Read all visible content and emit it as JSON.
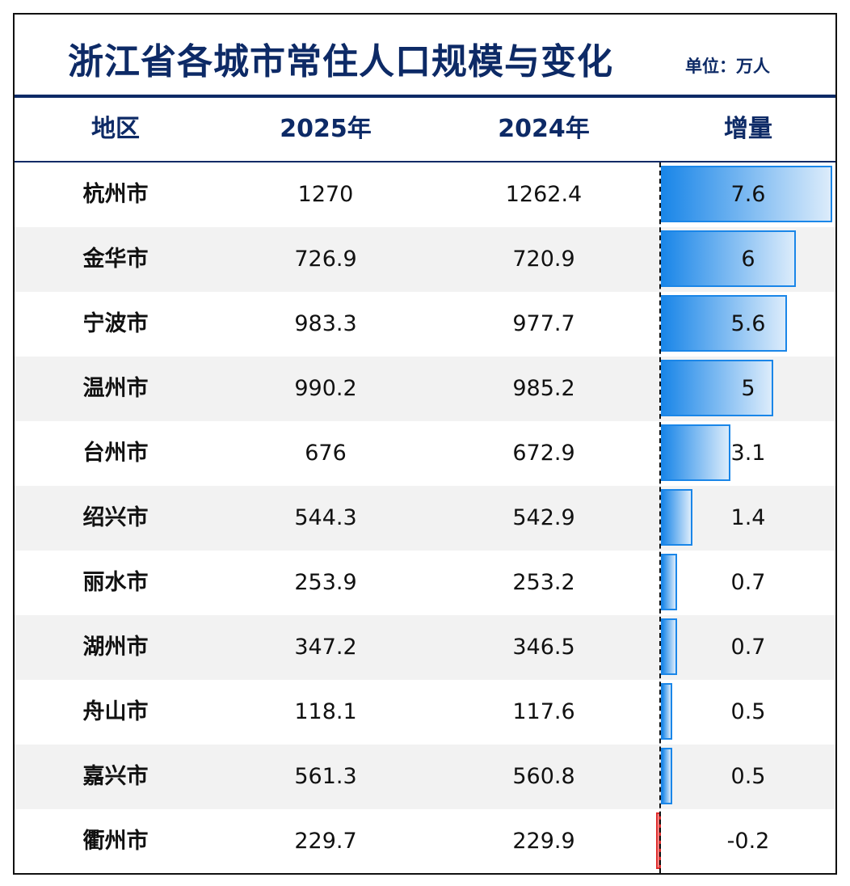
{
  "title": "浙江省各城市常住人口规模与变化",
  "unit": "单位：万人",
  "headers": {
    "region": "地区",
    "y2025": "2025年",
    "y2024": "2024年",
    "increase": "增量"
  },
  "colors": {
    "title": "#0d2a66",
    "positive_bar": "#1a86e8",
    "negative_bar": "#e02b2b",
    "alt_row": "#f2f2f2"
  },
  "chart_data": {
    "type": "table",
    "columns": [
      "地区",
      "2025年",
      "2024年",
      "增量"
    ],
    "rows": [
      {
        "region": "杭州市",
        "y2025": "1270",
        "y2024": "1262.4",
        "increase": 7.6,
        "increase_label": "7.6"
      },
      {
        "region": "金华市",
        "y2025": "726.9",
        "y2024": "720.9",
        "increase": 6,
        "increase_label": "6"
      },
      {
        "region": "宁波市",
        "y2025": "983.3",
        "y2024": "977.7",
        "increase": 5.6,
        "increase_label": "5.6"
      },
      {
        "region": "温州市",
        "y2025": "990.2",
        "y2024": "985.2",
        "increase": 5,
        "increase_label": "5"
      },
      {
        "region": "台州市",
        "y2025": "676",
        "y2024": "672.9",
        "increase": 3.1,
        "increase_label": "3.1"
      },
      {
        "region": "绍兴市",
        "y2025": "544.3",
        "y2024": "542.9",
        "increase": 1.4,
        "increase_label": "1.4"
      },
      {
        "region": "丽水市",
        "y2025": "253.9",
        "y2024": "253.2",
        "increase": 0.7,
        "increase_label": "0.7"
      },
      {
        "region": "湖州市",
        "y2025": "347.2",
        "y2024": "346.5",
        "increase": 0.7,
        "increase_label": "0.7"
      },
      {
        "region": "舟山市",
        "y2025": "118.1",
        "y2024": "117.6",
        "increase": 0.5,
        "increase_label": "0.5"
      },
      {
        "region": "嘉兴市",
        "y2025": "561.3",
        "y2024": "560.8",
        "increase": 0.5,
        "increase_label": "0.5"
      },
      {
        "region": "衢州市",
        "y2025": "229.7",
        "y2024": "229.9",
        "increase": -0.2,
        "increase_label": "-0.2"
      }
    ],
    "increase_axis_max": 7.6
  }
}
